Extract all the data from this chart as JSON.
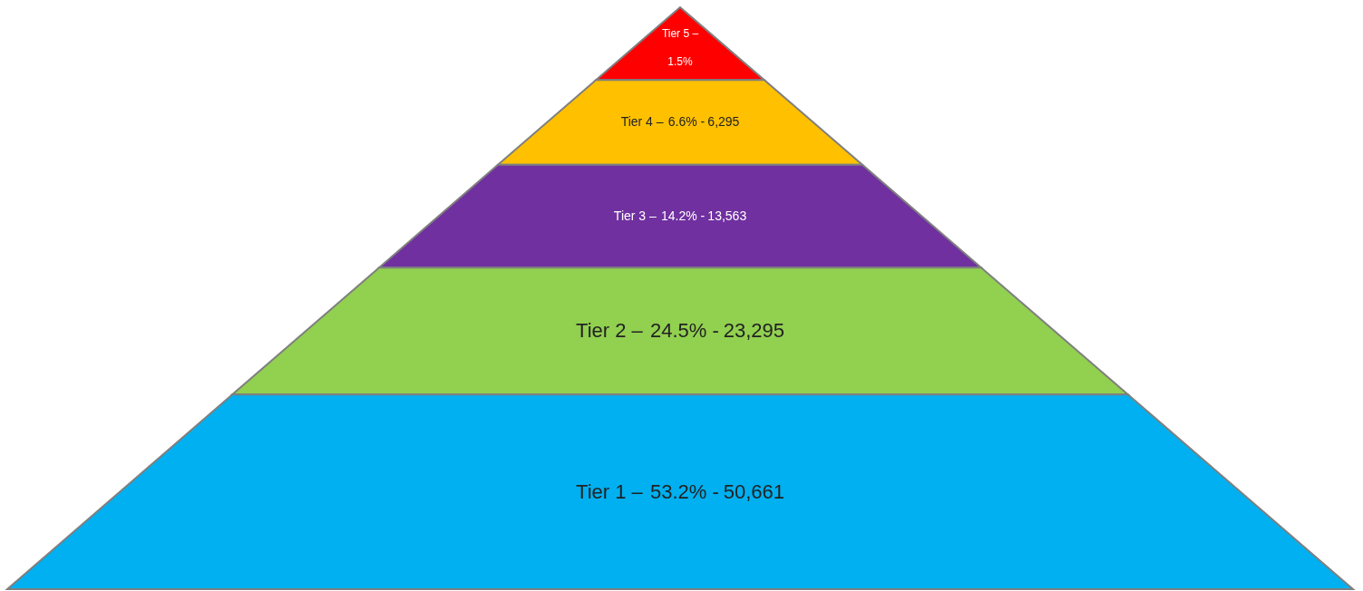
{
  "chart_data": {
    "type": "other",
    "categories": [
      "Tier 5 –",
      "Tier 4 –",
      "Tier 3 –",
      "Tier 2 –",
      "Tier 1 –"
    ],
    "series": [
      {
        "values": [
          1.5,
          6.6,
          14.2,
          24.5,
          53.2
        ],
        "value_labels": [
          "1.5%",
          "6.6% -",
          "14.2% -",
          "24.5% -",
          "53.2% -"
        ],
        "colors": [
          "#ff0000",
          "#ffc000",
          "#7030a0",
          "#92d050",
          "#00b0f0"
        ]
      }
    ],
    "annotations": [
      "6,295",
      "13,563",
      "23,295",
      "50,661"
    ]
  }
}
